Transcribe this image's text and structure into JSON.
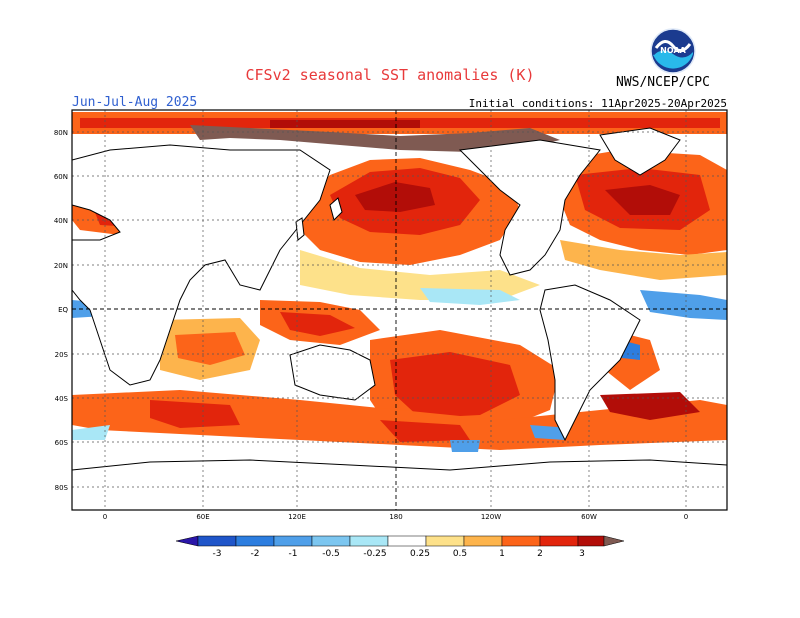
{
  "header": {
    "title": "CFSv2 seasonal SST anomalies (K)",
    "period": "Jun-Jul-Aug 2025",
    "initial_conditions": "Initial conditions: 11Apr2025-20Apr2025",
    "agency": "NWS/NCEP/CPC",
    "logo_text": "NOAA"
  },
  "map": {
    "lat_labels": [
      "80N",
      "60N",
      "40N",
      "20N",
      "EQ",
      "20S",
      "40S",
      "60S",
      "80S"
    ],
    "lon_labels": [
      "0",
      "60E",
      "120E",
      "180",
      "120W",
      "60W",
      "0"
    ],
    "background": "#ffffff",
    "land_color": "#ffffff"
  },
  "colorbar": {
    "labels": [
      "-3",
      "-2",
      "-1",
      "-0.5",
      "-0.25",
      "0.25",
      "0.5",
      "1",
      "2",
      "3"
    ],
    "colors": [
      "#2a16a8",
      "#1f55c9",
      "#2c7ddf",
      "#4f9fe9",
      "#a9e7f6",
      "#ffffff",
      "#fde18a",
      "#fdb44c",
      "#fc6419",
      "#e2250c",
      "#b20d08",
      "#7a0e05",
      "#7f5a52"
    ]
  }
}
